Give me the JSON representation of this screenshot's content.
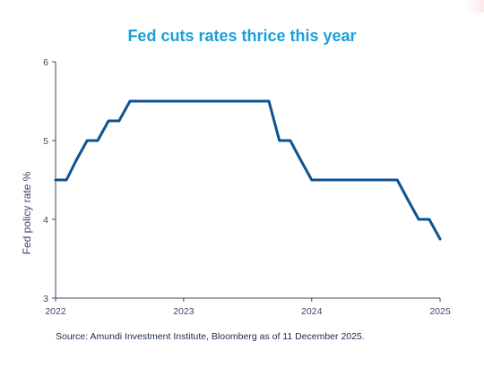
{
  "chart_data": {
    "type": "line",
    "title": "Fed cuts rates thrice this year",
    "ylabel": "Fed policy rate %",
    "xlabel": "",
    "ylim": [
      3,
      6
    ],
    "xlim": [
      "2022-01-01",
      "2025-01-01"
    ],
    "y_ticks": [
      3,
      4,
      5,
      6
    ],
    "x_ticks": [
      {
        "date": "2022-01-01",
        "label": "2022"
      },
      {
        "date": "2023-01-01",
        "label": "2023"
      },
      {
        "date": "2024-01-01",
        "label": "2024"
      },
      {
        "date": "2025-01-01",
        "label": "2025"
      }
    ],
    "grid": false,
    "series": [
      {
        "color": "#0b5394",
        "points": [
          {
            "x": "2022-01-01",
            "y": 4.5
          },
          {
            "x": "2022-02-01",
            "y": 4.5
          },
          {
            "x": "2022-03-01",
            "y": 4.75
          },
          {
            "x": "2022-04-01",
            "y": 5.0
          },
          {
            "x": "2022-05-01",
            "y": 5.0
          },
          {
            "x": "2022-06-01",
            "y": 5.25
          },
          {
            "x": "2022-07-01",
            "y": 5.25
          },
          {
            "x": "2022-08-01",
            "y": 5.5
          },
          {
            "x": "2023-09-01",
            "y": 5.5
          },
          {
            "x": "2023-10-01",
            "y": 5.0
          },
          {
            "x": "2023-11-01",
            "y": 5.0
          },
          {
            "x": "2023-12-01",
            "y": 4.75
          },
          {
            "x": "2024-01-01",
            "y": 4.5
          },
          {
            "x": "2024-09-01",
            "y": 4.5
          },
          {
            "x": "2024-10-01",
            "y": 4.25
          },
          {
            "x": "2024-11-01",
            "y": 4.0
          },
          {
            "x": "2024-12-01",
            "y": 4.0
          },
          {
            "x": "2025-01-01",
            "y": 3.75
          }
        ]
      }
    ],
    "source": "Source: Amundi Investment Institute, Bloomberg as of 11 December 2025."
  },
  "colors": {
    "title": "#1aa0d8",
    "line": "#0b5394",
    "axis": "#3a4766"
  }
}
